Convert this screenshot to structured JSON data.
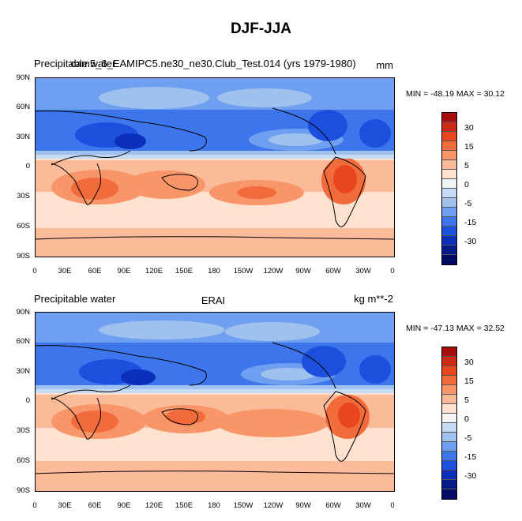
{
  "figure_title": "DJF-JJA",
  "panels": [
    {
      "left_label": "Precipitable water",
      "center_label": "cam5_6_EAMIPC5.ne30_ne30.Club_Test.014 (yrs 1979-1980)",
      "units": "mm",
      "stats": "MIN = -48.19 MAX =  30.12"
    },
    {
      "left_label": "Precipitable water",
      "center_label": "ERAI",
      "units": "kg m**-2",
      "stats": "MIN = -47.13 MAX =  32.52"
    }
  ],
  "lat_ticks": [
    "90N",
    "60N",
    "30N",
    "0",
    "30S",
    "60S",
    "90S"
  ],
  "lon_ticks": [
    "0",
    "30E",
    "60E",
    "90E",
    "120E",
    "150E",
    "180",
    "150W",
    "120W",
    "90W",
    "60W",
    "30W",
    "0"
  ],
  "colorbar": {
    "labels": [
      "30",
      "15",
      "5",
      "0",
      "-5",
      "-15",
      "-30"
    ],
    "colors": [
      "#a50f0f",
      "#cc2a14",
      "#e8471e",
      "#f26b3b",
      "#f8966a",
      "#fbbb98",
      "#fde2d0",
      "#f4f4f4",
      "#c6dbf3",
      "#9ec1ee",
      "#6f9ff0",
      "#3d75ec",
      "#1c4fdd",
      "#0a2fb8",
      "#061a8a",
      "#020a63"
    ]
  }
}
